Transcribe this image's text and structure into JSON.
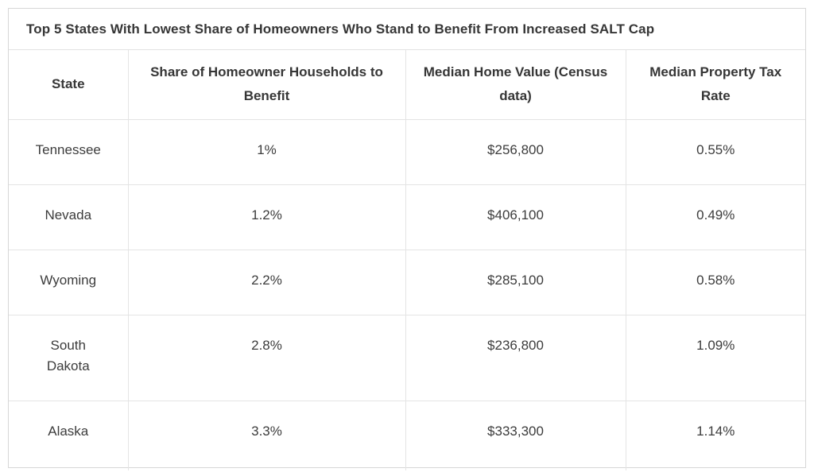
{
  "title": "Top 5 States With Lowest Share of Homeowners Who Stand to Benefit From Increased SALT Cap",
  "chart_data": {
    "type": "table",
    "title": "Top 5 States With Lowest Share of Homeowners Who Stand to Benefit From Increased SALT Cap",
    "columns": [
      "State",
      "Share of Homeowner Households to Benefit",
      "Median Home Value (Census data)",
      "Median Property Tax Rate"
    ],
    "rows": [
      [
        "Tennessee",
        "1%",
        "$256,800",
        "0.55%"
      ],
      [
        "Nevada",
        "1.2%",
        "$406,100",
        "0.49%"
      ],
      [
        "Wyoming",
        "2.2%",
        "$285,100",
        "0.58%"
      ],
      [
        "South Dakota",
        "2.8%",
        "$236,800",
        "1.09%"
      ],
      [
        "Alaska",
        "3.3%",
        "$333,300",
        "1.14%"
      ]
    ],
    "share_values_percent": [
      1.0,
      1.2,
      2.2,
      2.8,
      3.3
    ],
    "median_home_values_usd": [
      256800,
      406100,
      285100,
      236800,
      333300
    ],
    "median_property_tax_rates_percent": [
      0.55,
      0.49,
      0.58,
      1.09,
      1.14
    ]
  },
  "colors": {
    "text": "#3c3c3c",
    "heading_text": "#363636",
    "inner_border": "#e4e4e4",
    "outer_border": "#d7d7d7",
    "background": "#ffffff"
  }
}
